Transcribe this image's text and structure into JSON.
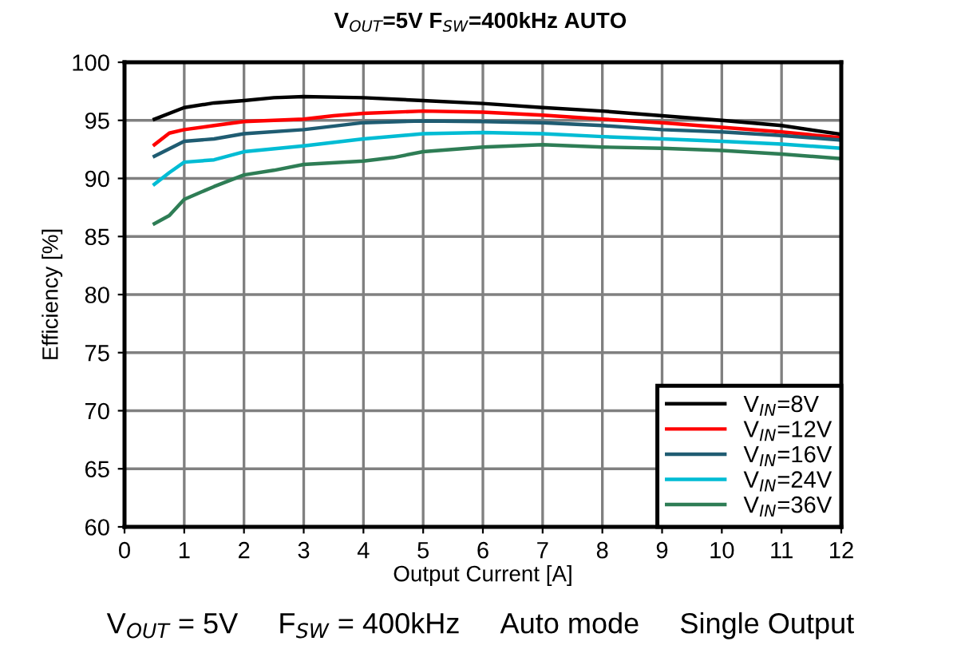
{
  "chart_data": {
    "type": "line",
    "title": "V$_{OUT}$=5V F$_{SW}$=400kHz AUTO",
    "xlabel": "Output Current [A]",
    "ylabel": "Efficiency [%]",
    "xlim": [
      0,
      12
    ],
    "xticks": [
      0,
      1,
      2,
      3,
      4,
      5,
      6,
      7,
      8,
      9,
      10,
      11,
      12
    ],
    "ylim": [
      60,
      100
    ],
    "yticks": [
      60,
      65,
      70,
      75,
      80,
      85,
      90,
      95,
      100
    ],
    "grid": true,
    "legend": "bottom right",
    "marker": "none",
    "line_style": "solid",
    "annotations": [
      "V$_{OUT}$ = 5V     F$_{SW}$ = 400kHz     Auto mode     Single Output"
    ],
    "series": [
      {
        "name": "V$_{IN}$=8V",
        "color": "#000000",
        "x": [
          0.5,
          1,
          1.5,
          2,
          2.5,
          3,
          4,
          5,
          6,
          7,
          8,
          9,
          10,
          11,
          12
        ],
        "values": [
          95.1,
          96.1,
          96.5,
          96.7,
          96.95,
          97.05,
          96.95,
          96.7,
          96.45,
          96.1,
          95.8,
          95.4,
          95.0,
          94.55,
          93.8
        ]
      },
      {
        "name": "V$_{IN}$=12V",
        "color": "#ff0000",
        "x": [
          0.5,
          0.75,
          1,
          1.5,
          2,
          3,
          3.5,
          4,
          5,
          6,
          7,
          8,
          9,
          10,
          11,
          12
        ],
        "values": [
          92.9,
          93.9,
          94.2,
          94.55,
          94.9,
          95.1,
          95.4,
          95.6,
          95.8,
          95.7,
          95.45,
          95.1,
          94.8,
          94.4,
          94.0,
          93.5
        ]
      },
      {
        "name": "V$_{IN}$=16V",
        "color": "#1f5c72",
        "x": [
          0.5,
          1,
          1.5,
          2,
          3,
          4,
          5,
          6,
          7,
          8,
          9,
          10,
          11,
          12
        ],
        "values": [
          91.9,
          93.2,
          93.4,
          93.85,
          94.2,
          94.8,
          94.95,
          94.9,
          94.8,
          94.55,
          94.2,
          94.0,
          93.7,
          93.3
        ]
      },
      {
        "name": "V$_{IN}$=24V",
        "color": "#00bcd4",
        "x": [
          0.5,
          0.75,
          1,
          1.5,
          2,
          3,
          4,
          5,
          6,
          7,
          8,
          9,
          10,
          11,
          12
        ],
        "values": [
          89.5,
          90.5,
          91.4,
          91.6,
          92.3,
          92.8,
          93.4,
          93.85,
          93.95,
          93.85,
          93.6,
          93.4,
          93.2,
          92.95,
          92.6
        ]
      },
      {
        "name": "V$_{IN}$=36V",
        "color": "#2e7d55",
        "x": [
          0.5,
          0.75,
          1,
          1.5,
          2,
          2.5,
          3,
          4,
          4.5,
          5,
          6,
          7,
          8,
          9,
          10,
          11,
          12
        ],
        "values": [
          86.1,
          86.8,
          88.2,
          89.3,
          90.3,
          90.7,
          91.2,
          91.5,
          91.8,
          92.3,
          92.7,
          92.9,
          92.7,
          92.6,
          92.4,
          92.1,
          91.7
        ]
      }
    ]
  }
}
